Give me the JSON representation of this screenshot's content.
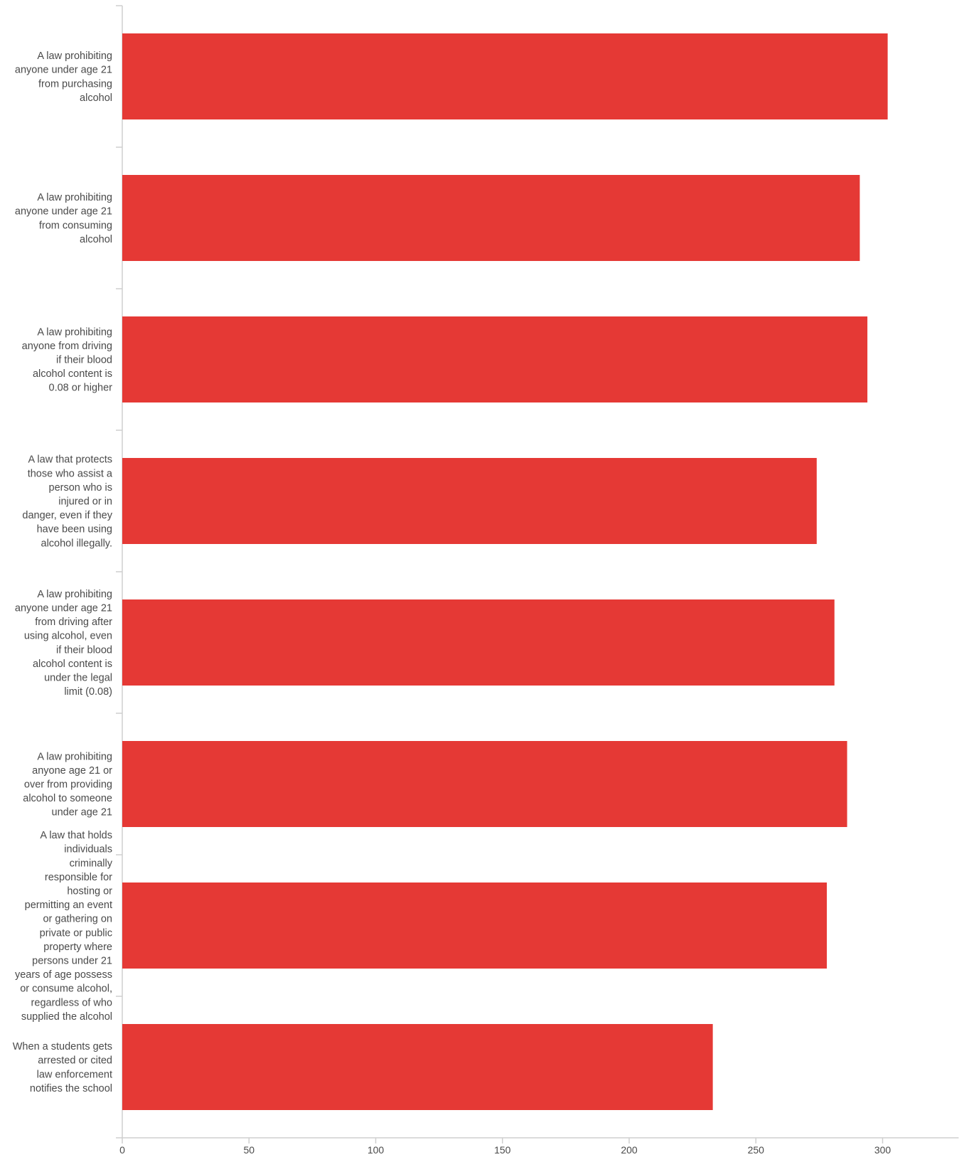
{
  "chart_data": {
    "type": "bar",
    "orientation": "horizontal",
    "categories": [
      "A law prohibiting anyone under age 21 from purchasing alcohol",
      "A law prohibiting anyone under age 21 from consuming alcohol",
      "A law prohibiting anyone from driving if their blood alcohol content is 0.08 or higher",
      "A law that protects those who assist a person who is injured or in danger, even if they have been using alcohol illegally.",
      "A law prohibiting anyone under age 21 from driving after using alcohol, even if their blood alcohol content is under the legal limit (0.08)",
      "A law prohibiting anyone age 21 or over from providing alcohol to someone under age 21",
      "A law that holds individuals criminally responsible for hosting or permitting an event or gathering on private or public property where persons under 21 years of age possess or consume alcohol, regardless of who supplied the alcohol",
      "When a students gets arrested or cited law enforcement notifies the school"
    ],
    "category_lines": [
      [
        "A law prohibiting",
        "anyone under age 21",
        "from purchasing",
        "alcohol"
      ],
      [
        "A law prohibiting",
        "anyone under age 21",
        "from consuming",
        "alcohol"
      ],
      [
        "A law prohibiting",
        "anyone from driving",
        "if their blood",
        "alcohol content is",
        "0.08 or higher"
      ],
      [
        "A law that protects",
        "those who assist a",
        "person who is",
        "injured or in",
        "danger, even if they",
        "have been using",
        "alcohol illegally."
      ],
      [
        "A law prohibiting",
        "anyone under age 21",
        "from driving after",
        "using alcohol, even",
        "if their blood",
        "alcohol content is",
        "under the legal",
        "limit (0.08)"
      ],
      [
        "A law prohibiting",
        "anyone age 21 or",
        "over from providing",
        "alcohol to someone",
        "under age 21"
      ],
      [
        "A law that holds",
        "individuals",
        "criminally",
        "responsible for",
        "hosting or",
        "permitting an event",
        "or gathering on",
        "private or public",
        "property where",
        "persons under 21",
        "years of age possess",
        "or consume alcohol,",
        "regardless of who",
        "supplied the alcohol"
      ],
      [
        "When a students gets",
        "arrested or cited",
        "law enforcement",
        "notifies the school"
      ]
    ],
    "values": [
      302,
      291,
      294,
      274,
      281,
      286,
      278,
      233
    ],
    "xlim": [
      0,
      330
    ],
    "xticks": [
      0,
      50,
      100,
      150,
      200,
      250,
      300
    ],
    "bar_color": "#e53935",
    "axis_color": "#cfcfcf",
    "grid": false,
    "legend": "none",
    "title": "",
    "xlabel": "",
    "ylabel": ""
  }
}
